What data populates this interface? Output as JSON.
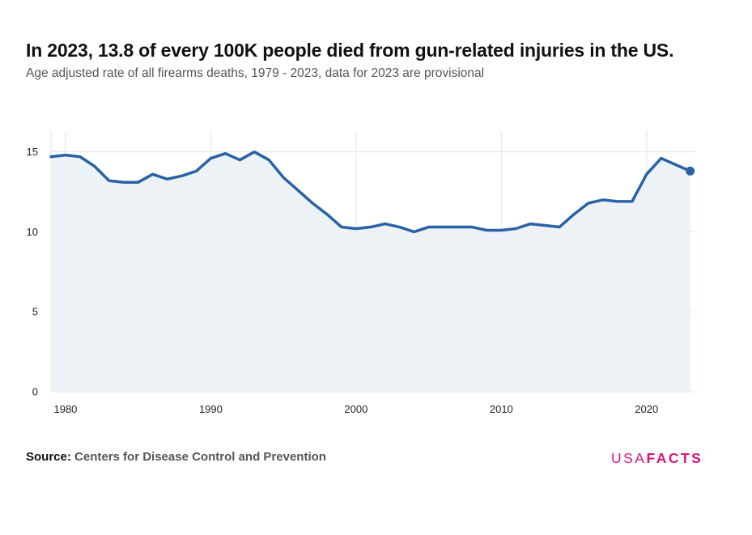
{
  "title": "In 2023, 13.8 of every 100K people died from gun-related injuries in the US.",
  "subtitle": "Age adjusted rate of all firearms deaths, 1979 - 2023, data for 2023 are provisional",
  "source": {
    "label": "Source:",
    "text": "Centers for Disease Control and Prevention"
  },
  "logo": {
    "part1": "USA",
    "part2": "FACTS"
  },
  "colors": {
    "line": "#2a62a6",
    "area": "#edf2f7",
    "grid": "#e3e3e3",
    "brand": "#d6167c"
  },
  "chart_data": {
    "type": "area",
    "x": [
      1979,
      1980,
      1981,
      1982,
      1983,
      1984,
      1985,
      1986,
      1987,
      1988,
      1989,
      1990,
      1991,
      1992,
      1993,
      1994,
      1995,
      1996,
      1997,
      1998,
      1999,
      2000,
      2001,
      2002,
      2003,
      2004,
      2005,
      2006,
      2007,
      2008,
      2009,
      2010,
      2011,
      2012,
      2013,
      2014,
      2015,
      2016,
      2017,
      2018,
      2019,
      2020,
      2021,
      2022,
      2023
    ],
    "values": [
      14.7,
      14.8,
      14.7,
      14.1,
      13.2,
      13.1,
      13.1,
      13.6,
      13.3,
      13.5,
      13.8,
      14.6,
      14.9,
      14.5,
      15.0,
      14.5,
      13.4,
      12.6,
      11.8,
      11.1,
      10.3,
      10.2,
      10.3,
      10.5,
      10.3,
      10.0,
      10.3,
      10.3,
      10.3,
      10.3,
      10.1,
      10.1,
      10.2,
      10.5,
      10.4,
      10.3,
      11.1,
      11.8,
      12.0,
      11.9,
      11.9,
      13.6,
      14.6,
      14.2,
      13.8
    ],
    "x_ticks": [
      1980,
      1990,
      2000,
      2010,
      2020
    ],
    "y_ticks": [
      0,
      5,
      10,
      15
    ],
    "xlim": [
      1979,
      2023.3
    ],
    "ylim": [
      0,
      16.3
    ],
    "highlight_last_point": true,
    "grid": true
  }
}
